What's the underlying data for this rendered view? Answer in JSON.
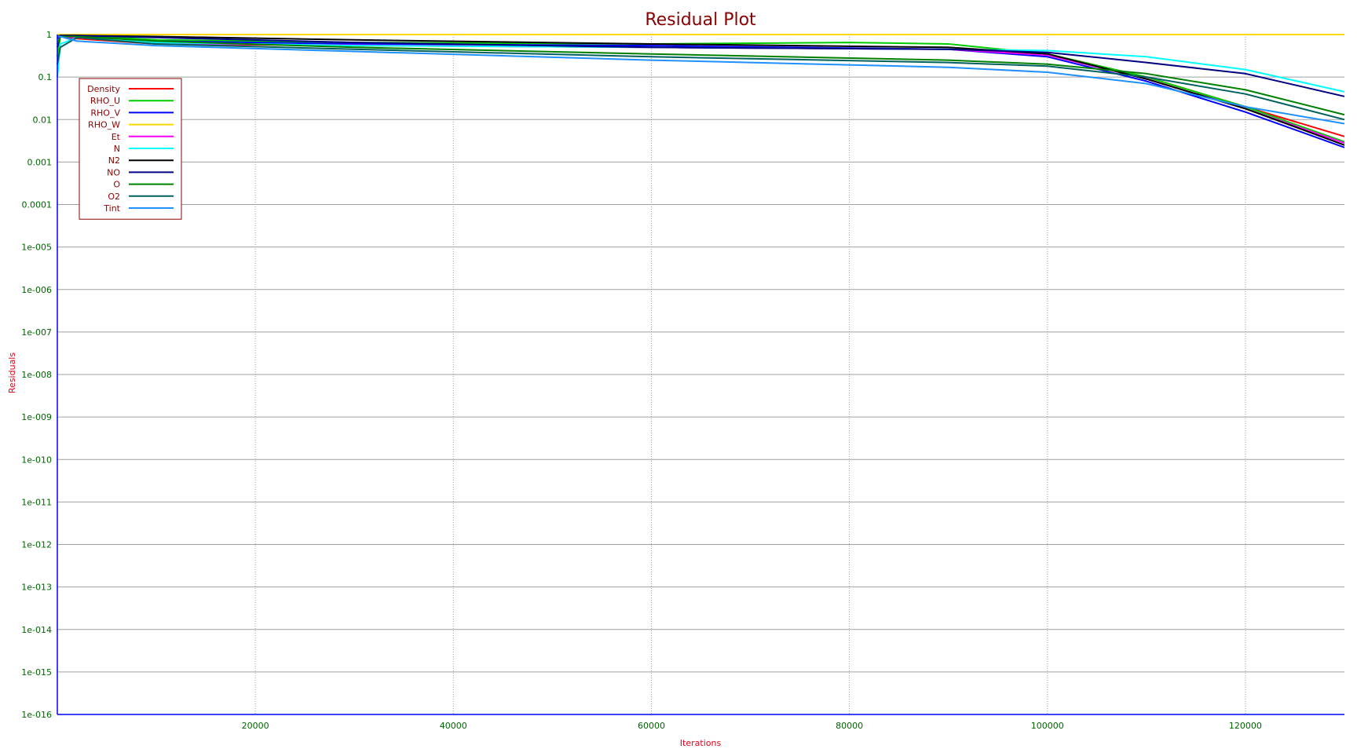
{
  "chart_data": {
    "type": "line",
    "title": "Residual Plot",
    "xlabel": "Iterations",
    "ylabel": "Residuals",
    "yscale": "log",
    "xlim": [
      0,
      130000
    ],
    "ylim": [
      1e-16,
      1
    ],
    "grid": true,
    "legend_position": "top-left",
    "x_ticks": [
      20000,
      40000,
      60000,
      80000,
      100000,
      120000
    ],
    "x_tick_labels": [
      "20000",
      "40000",
      "60000",
      "80000",
      "100000",
      "120000"
    ],
    "y_ticks": [
      1,
      0.1,
      0.01,
      0.001,
      0.0001,
      1e-05,
      1e-06,
      1e-07,
      1e-08,
      1e-09,
      1e-10,
      1e-11,
      1e-12,
      1e-13,
      1e-14,
      1e-15,
      1e-16
    ],
    "y_tick_labels": [
      "1",
      "0.1",
      "0.01",
      "0.001",
      "0.0001",
      "1e-005",
      "1e-006",
      "1e-007",
      "1e-008",
      "1e-009",
      "1e-010",
      "1e-011",
      "1e-012",
      "1e-013",
      "1e-014",
      "1e-015",
      "1e-016"
    ],
    "colors": {
      "title": "#8b0000",
      "tick": "#006400",
      "axis_label": "#e8001c",
      "axis_line": "#0000ff",
      "grid": "#a0a0a0",
      "legend_border": "#8b0000"
    },
    "series": [
      {
        "name": "Density",
        "color": "#ff0000",
        "x": [
          0,
          300,
          2000,
          10000,
          30000,
          60000,
          90000,
          100000,
          110000,
          120000,
          130000
        ],
        "y": [
          0.9,
          0.9,
          0.8,
          0.6,
          0.55,
          0.5,
          0.45,
          0.35,
          0.1,
          0.02,
          0.004
        ]
      },
      {
        "name": "RHO_U",
        "color": "#00cc00",
        "x": [
          0,
          300,
          2000,
          10000,
          30000,
          60000,
          80000,
          90000,
          100000,
          110000,
          120000,
          130000
        ],
        "y": [
          0.3,
          0.9,
          0.95,
          0.75,
          0.65,
          0.6,
          0.65,
          0.6,
          0.35,
          0.1,
          0.02,
          0.003
        ]
      },
      {
        "name": "RHO_V",
        "color": "#0000ff",
        "x": [
          0,
          300,
          2000,
          10000,
          30000,
          60000,
          90000,
          100000,
          110000,
          120000,
          130000
        ],
        "y": [
          0.8,
          0.9,
          0.85,
          0.7,
          0.6,
          0.55,
          0.45,
          0.3,
          0.08,
          0.015,
          0.0022
        ]
      },
      {
        "name": "RHO_W",
        "color": "#ffd700",
        "x": [
          0,
          130000
        ],
        "y": [
          1,
          1
        ]
      },
      {
        "name": "Et",
        "color": "#ff00ff",
        "x": [
          0,
          300,
          2000,
          10000,
          30000,
          60000,
          90000,
          100000,
          110000,
          120000,
          130000
        ],
        "y": [
          0.9,
          0.9,
          0.85,
          0.62,
          0.56,
          0.5,
          0.45,
          0.33,
          0.09,
          0.018,
          0.0028
        ]
      },
      {
        "name": "N",
        "color": "#00ffff",
        "x": [
          0,
          300,
          2000,
          10000,
          30000,
          60000,
          90000,
          100000,
          110000,
          120000,
          130000
        ],
        "y": [
          0.1,
          0.6,
          0.85,
          0.65,
          0.55,
          0.5,
          0.45,
          0.42,
          0.3,
          0.15,
          0.045
        ]
      },
      {
        "name": "N2",
        "color": "#000000",
        "x": [
          0,
          300,
          2000,
          10000,
          30000,
          60000,
          90000,
          100000,
          110000,
          120000,
          130000
        ],
        "y": [
          0.9,
          0.95,
          0.95,
          0.9,
          0.75,
          0.6,
          0.5,
          0.35,
          0.09,
          0.018,
          0.0025
        ]
      },
      {
        "name": "NO",
        "color": "#000080",
        "x": [
          0,
          300,
          2000,
          10000,
          30000,
          60000,
          90000,
          100000,
          110000,
          120000,
          130000
        ],
        "y": [
          0.5,
          0.95,
          0.95,
          0.85,
          0.65,
          0.5,
          0.45,
          0.38,
          0.22,
          0.12,
          0.035
        ]
      },
      {
        "name": "O",
        "color": "#008000",
        "x": [
          0,
          300,
          2000,
          10000,
          30000,
          60000,
          90000,
          100000,
          110000,
          120000,
          130000
        ],
        "y": [
          0.6,
          0.9,
          0.9,
          0.7,
          0.5,
          0.35,
          0.25,
          0.2,
          0.12,
          0.05,
          0.013
        ]
      },
      {
        "name": "O2",
        "color": "#006060",
        "x": [
          0,
          300,
          2000,
          10000,
          30000,
          60000,
          90000,
          100000,
          110000,
          120000,
          130000
        ],
        "y": [
          0.2,
          0.5,
          0.85,
          0.6,
          0.45,
          0.3,
          0.22,
          0.18,
          0.1,
          0.04,
          0.01
        ]
      },
      {
        "name": "Tint",
        "color": "#1e90ff",
        "x": [
          0,
          300,
          2000,
          10000,
          30000,
          60000,
          90000,
          100000,
          110000,
          120000,
          130000
        ],
        "y": [
          0.9,
          0.9,
          0.7,
          0.55,
          0.4,
          0.25,
          0.17,
          0.13,
          0.07,
          0.02,
          0.008
        ]
      }
    ]
  }
}
